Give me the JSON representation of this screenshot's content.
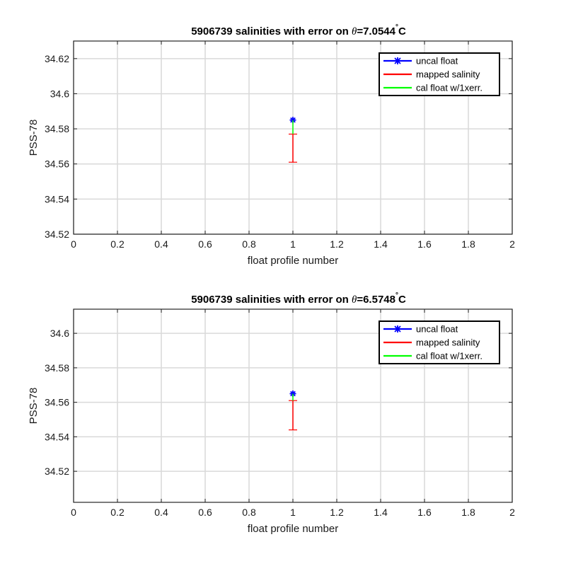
{
  "chart_data": [
    {
      "type": "scatter",
      "title": "5906739 salinities with error on θ=7.0544°C",
      "title_parts": [
        "5906739 salinities with error on ",
        "θ",
        "=7.0544",
        "°",
        "C"
      ],
      "xlabel": "float profile number",
      "ylabel": "PSS-78",
      "xlim": [
        0,
        2
      ],
      "ylim": [
        34.52,
        34.63
      ],
      "xticks": [
        0,
        0.2,
        0.4,
        0.6,
        0.8,
        1,
        1.2,
        1.4,
        1.6,
        1.8,
        2
      ],
      "xtick_labels": [
        "0",
        "0.2",
        "0.4",
        "0.6",
        "0.8",
        "1",
        "1.2",
        "1.4",
        "1.6",
        "1.8",
        "2"
      ],
      "yticks": [
        34.52,
        34.54,
        34.56,
        34.58,
        34.6,
        34.62
      ],
      "ytick_labels": [
        "34.52",
        "34.54",
        "34.56",
        "34.58",
        "34.6",
        "34.62"
      ],
      "grid": true,
      "legend_position": "top-right",
      "series": [
        {
          "name": "uncal float",
          "color": "#0000ff",
          "x": [
            1
          ],
          "y": [
            34.585
          ]
        },
        {
          "name": "mapped salinity",
          "color": "#ff0000",
          "x": [
            1
          ],
          "y": [
            34.569
          ],
          "err_low": [
            34.561
          ],
          "err_high": [
            34.577
          ]
        },
        {
          "name": "cal float w/1xerr.",
          "color": "#00ff00",
          "x": [
            1
          ],
          "y": [
            34.585
          ],
          "err_low": [
            34.577
          ],
          "err_high": [
            34.585
          ]
        }
      ]
    },
    {
      "type": "scatter",
      "title": "5906739 salinities with error on θ=6.5748°C",
      "title_parts": [
        "5906739 salinities with error on ",
        "θ",
        "=6.5748",
        "°",
        "C"
      ],
      "xlabel": "float profile number",
      "ylabel": "PSS-78",
      "xlim": [
        0,
        2
      ],
      "ylim": [
        34.502,
        34.614
      ],
      "xticks": [
        0,
        0.2,
        0.4,
        0.6,
        0.8,
        1,
        1.2,
        1.4,
        1.6,
        1.8,
        2
      ],
      "xtick_labels": [
        "0",
        "0.2",
        "0.4",
        "0.6",
        "0.8",
        "1",
        "1.2",
        "1.4",
        "1.6",
        "1.8",
        "2"
      ],
      "yticks": [
        34.52,
        34.54,
        34.56,
        34.58,
        34.6
      ],
      "ytick_labels": [
        "34.52",
        "34.54",
        "34.56",
        "34.58",
        "34.6"
      ],
      "grid": true,
      "legend_position": "top-right",
      "series": [
        {
          "name": "uncal float",
          "color": "#0000ff",
          "x": [
            1
          ],
          "y": [
            34.565
          ]
        },
        {
          "name": "mapped salinity",
          "color": "#ff0000",
          "x": [
            1
          ],
          "y": [
            34.5525
          ],
          "err_low": [
            34.544
          ],
          "err_high": [
            34.561
          ]
        },
        {
          "name": "cal float w/1xerr.",
          "color": "#00ff00",
          "x": [
            1
          ],
          "y": [
            34.565
          ],
          "err_low": [
            34.561
          ],
          "err_high": [
            34.565
          ]
        }
      ]
    }
  ]
}
